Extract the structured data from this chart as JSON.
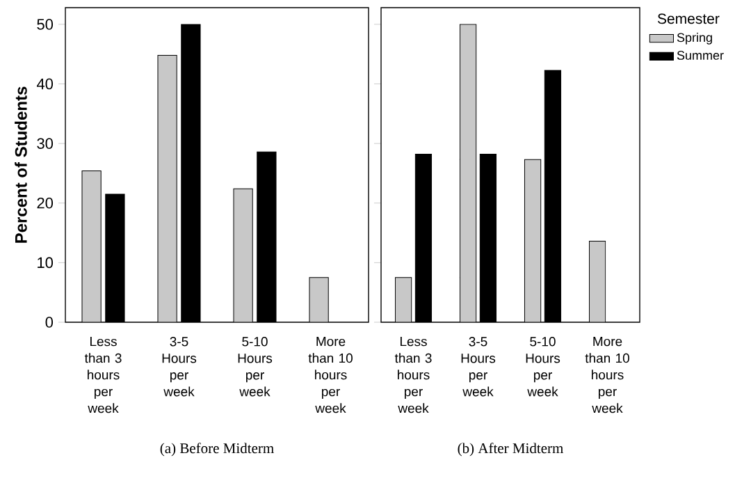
{
  "chart_data": [
    {
      "type": "bar",
      "title": "(a) Before Midterm",
      "ylabel": "Percent of Students",
      "categories": [
        "Less than 3 hours per week",
        "3-5 Hours per week",
        "5-10 Hours per week",
        "More than 10 hours per week"
      ],
      "series": [
        {
          "color": "#c8c8c8",
          "values": [
            25.4,
            44.8,
            22.4,
            7.5
          ]
        },
        {
          "color": "#000000",
          "values": [
            21.5,
            50,
            28.6,
            null
          ]
        }
      ],
      "ylim": [
        0,
        52.8
      ],
      "yticks": [
        0,
        10,
        20,
        30,
        40,
        50
      ],
      "grid": false,
      "legend": false
    },
    {
      "type": "bar",
      "title": "(b) After Midterm",
      "legend_title": "Semester",
      "categories": [
        "Less than 3 hours per week",
        "3-5 Hours per week",
        "5-10 Hours per week",
        "More than 10 hours per week"
      ],
      "series": [
        {
          "name": "Spring",
          "color": "#c8c8c8",
          "values": [
            7.5,
            50,
            27.3,
            13.6
          ]
        },
        {
          "name": "Summer",
          "color": "#000000",
          "values": [
            28.2,
            28.2,
            42.3,
            null
          ]
        }
      ],
      "ylim": [
        0,
        52.8
      ],
      "yticks": [
        0,
        10,
        20,
        30,
        40,
        50
      ],
      "grid": false,
      "legend": "top right",
      "tick_labels": "x"
    }
  ]
}
